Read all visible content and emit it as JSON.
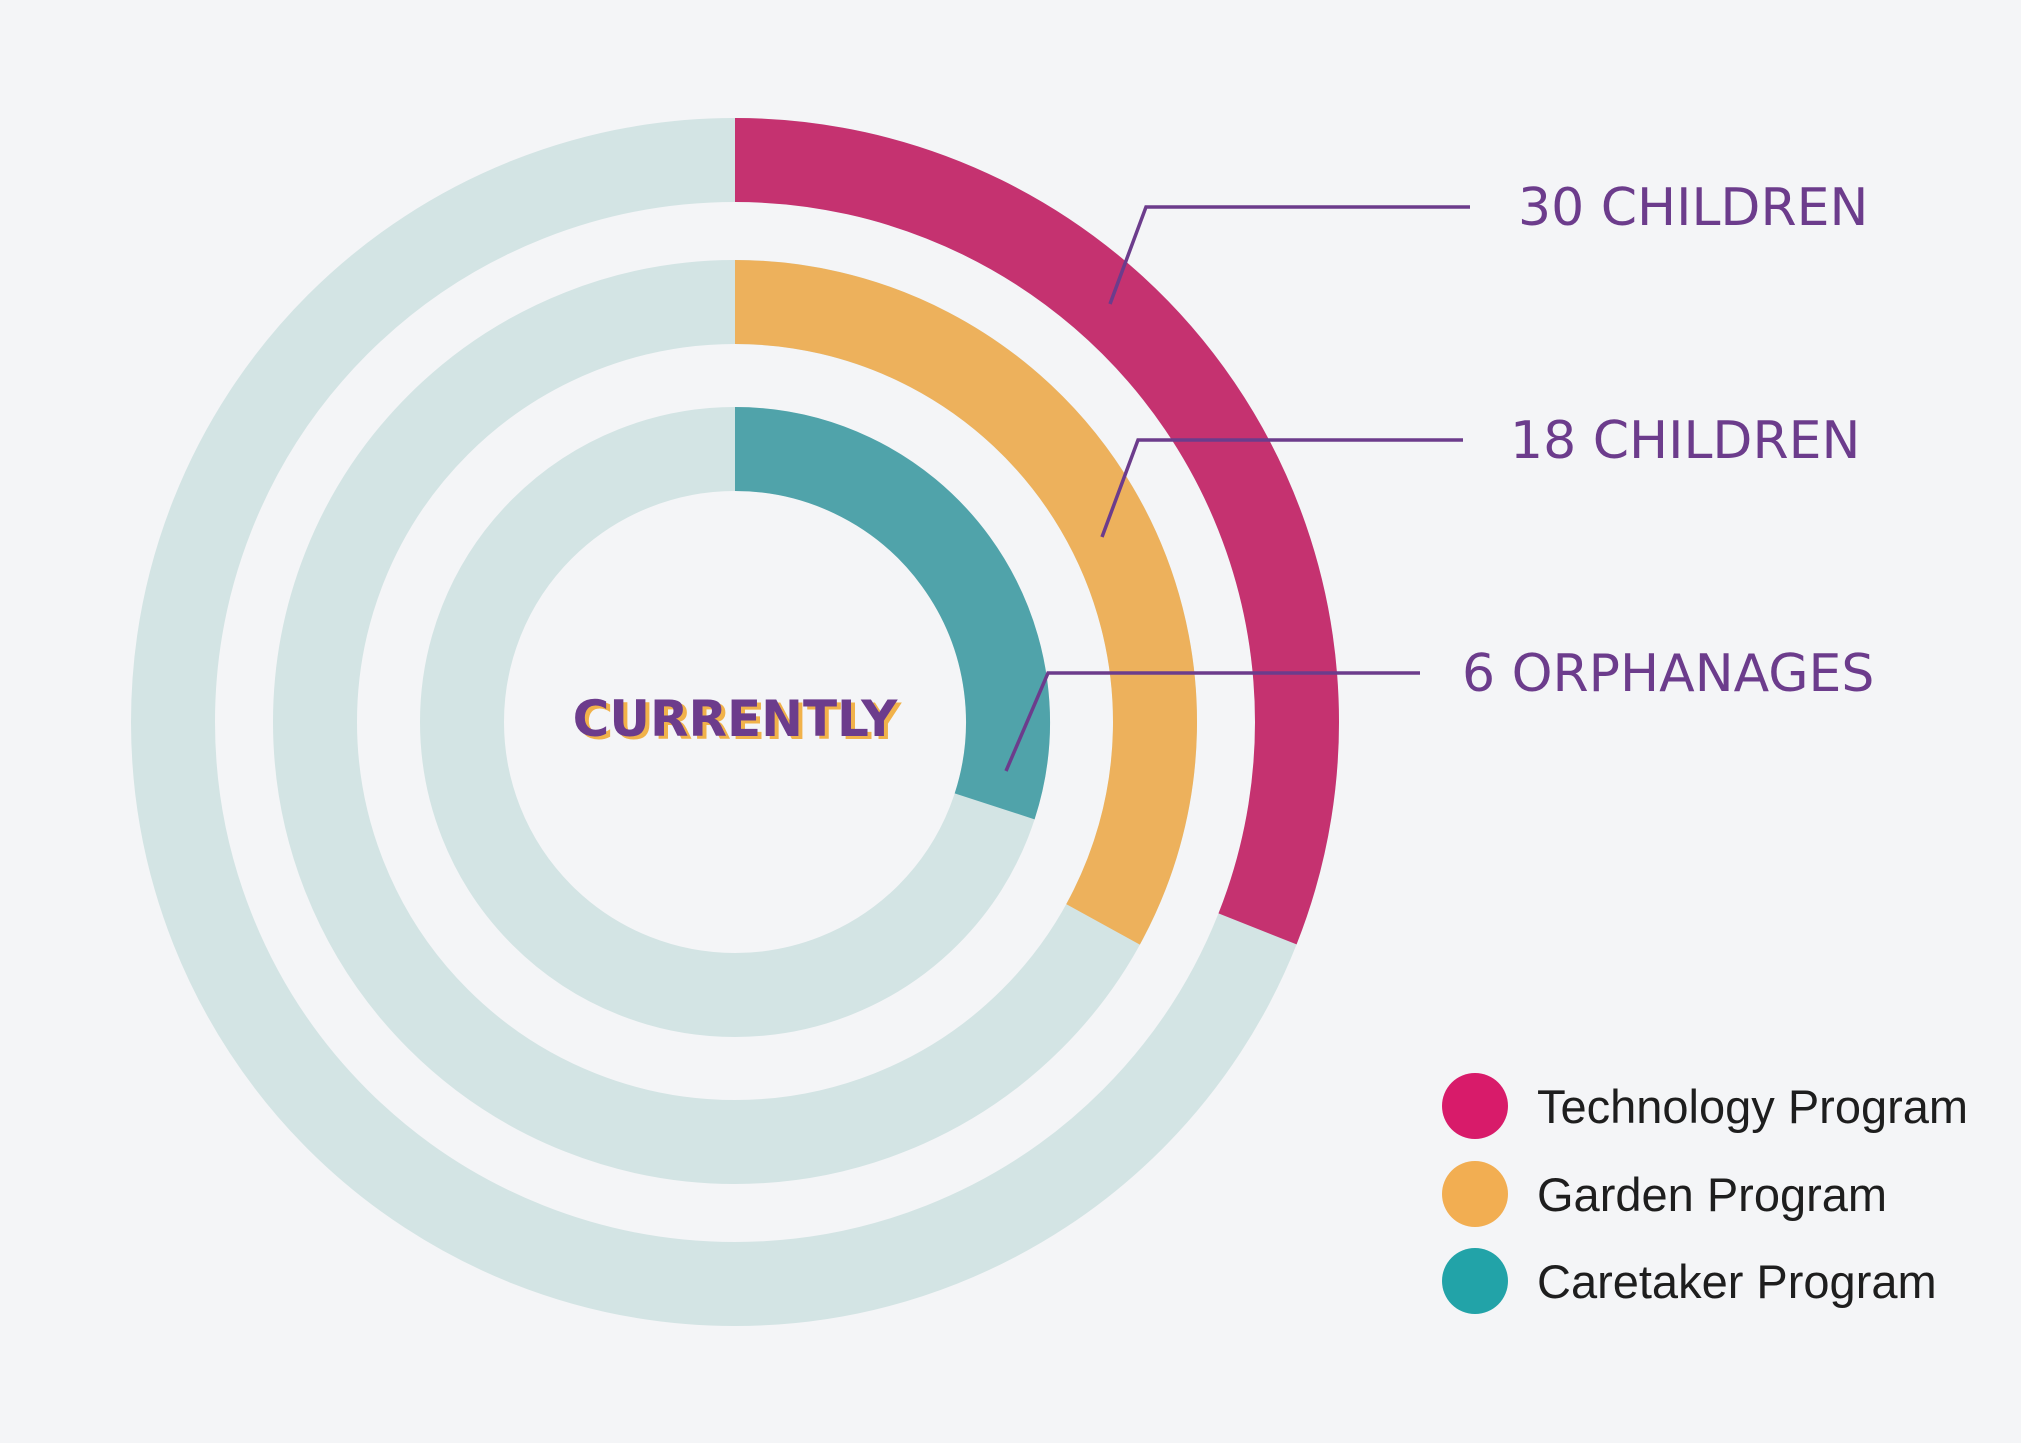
{
  "chart_data": {
    "type": "radial-bar",
    "center_label": "CURRENTLY",
    "series": [
      {
        "name": "Technology Program",
        "label": "30 CHILDREN",
        "fraction": 0.31,
        "color": "#c53270"
      },
      {
        "name": "Garden Program",
        "label": "18 CHILDREN",
        "fraction": 0.33,
        "color": "#edb15c"
      },
      {
        "name": "Caretaker Program",
        "label": "6 ORPHANAGES",
        "fraction": 0.3,
        "color": "#50a3aa"
      }
    ],
    "track_color": "#d3e4e4"
  },
  "legend": {
    "items": [
      {
        "label": "Technology Program",
        "color": "#d81b6a"
      },
      {
        "label": "Garden Program",
        "color": "#f2ae52"
      },
      {
        "label": "Caretaker Program",
        "color": "#22a3a8"
      }
    ]
  }
}
